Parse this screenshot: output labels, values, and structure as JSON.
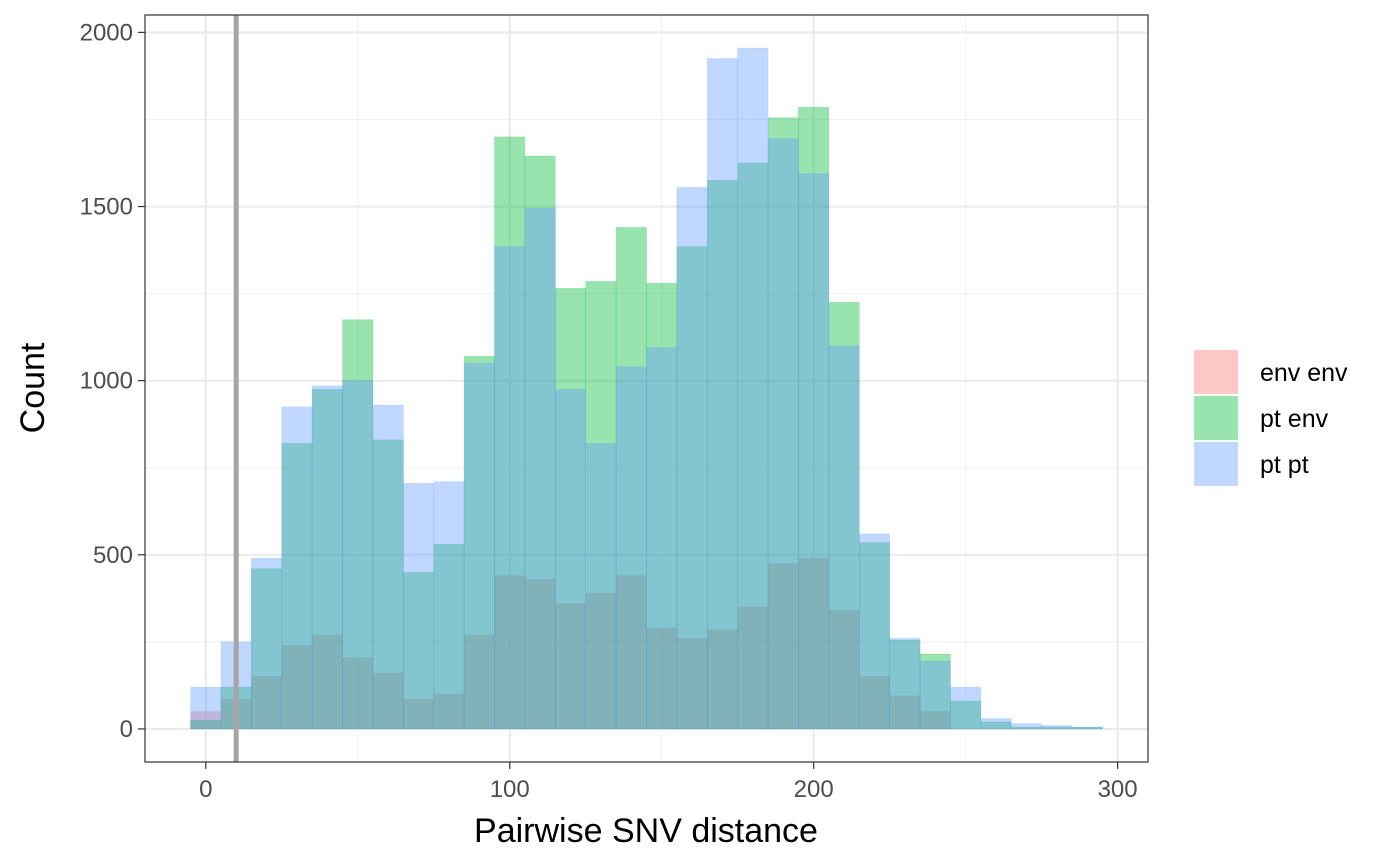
{
  "chart_data": {
    "type": "histogram",
    "xlabel": "Pairwise SNV distance",
    "ylabel": "Count",
    "xlim": [
      -20,
      310
    ],
    "ylim": [
      -95,
      2050
    ],
    "x_ticks": [
      0,
      100,
      200,
      300
    ],
    "y_ticks": [
      0,
      500,
      1000,
      1500,
      2000
    ],
    "grid": true,
    "legend_position": "right",
    "bin_width": 10,
    "bin_centers": [
      0,
      10,
      20,
      30,
      40,
      50,
      60,
      70,
      80,
      90,
      100,
      110,
      120,
      130,
      140,
      150,
      160,
      170,
      180,
      190,
      200,
      210,
      220,
      230,
      240,
      250,
      260,
      270,
      280,
      290
    ],
    "reference_line": {
      "x": 10,
      "color": "#a6a6a6"
    },
    "series": [
      {
        "name": "env env",
        "color": "#F8766D",
        "values": [
          50,
          85,
          150,
          240,
          270,
          205,
          160,
          85,
          100,
          270,
          440,
          430,
          360,
          390,
          440,
          290,
          260,
          285,
          350,
          475,
          490,
          340,
          150,
          95,
          50,
          0,
          0,
          0,
          0,
          0
        ]
      },
      {
        "name": "pt env",
        "color": "#00BA38",
        "values": [
          25,
          120,
          460,
          820,
          975,
          1175,
          830,
          450,
          530,
          1070,
          1700,
          1645,
          1265,
          1285,
          1440,
          1280,
          1385,
          1575,
          1625,
          1755,
          1785,
          1225,
          535,
          255,
          215,
          80,
          20,
          5,
          5,
          5
        ]
      },
      {
        "name": "pt pt",
        "color": "#619CFF",
        "values": [
          120,
          250,
          490,
          925,
          985,
          1000,
          930,
          705,
          710,
          1050,
          1385,
          1495,
          975,
          820,
          1040,
          1095,
          1555,
          1925,
          1955,
          1695,
          1595,
          1100,
          560,
          260,
          195,
          120,
          30,
          15,
          10,
          5
        ]
      }
    ]
  }
}
